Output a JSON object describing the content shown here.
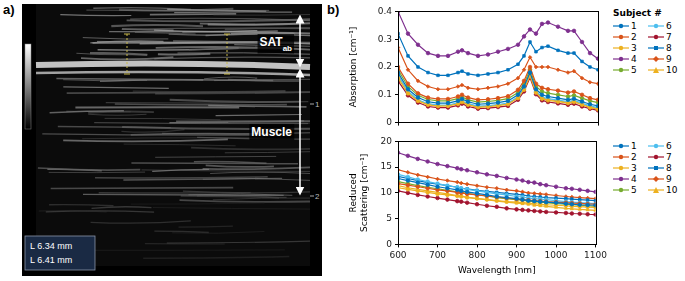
{
  "panel_labels": [
    "a)",
    "b)"
  ],
  "ultrasound_image": {
    "labels": [
      {
        "text": "SAT",
        "subscript": "ab"
      },
      {
        "text": "Muscle"
      }
    ],
    "measurements": [
      "L 6.34 mm",
      "L 6.41 mm"
    ],
    "depth_ticks": [
      1,
      2
    ]
  },
  "chart_data": [
    {
      "type": "line",
      "y_label": "Absorption [cm⁻¹]",
      "legend_title": "Subject #",
      "legend": "right",
      "grid": false,
      "tick_labels": "y",
      "x": [
        600,
        625,
        650,
        675,
        700,
        725,
        750,
        760,
        775,
        800,
        825,
        850,
        875,
        900,
        915,
        930,
        945,
        960,
        975,
        1000,
        1025,
        1040,
        1060,
        1080,
        1100
      ],
      "xlim": [
        600,
        1100
      ],
      "xticks": [
        600,
        700,
        800,
        900,
        1000,
        1100
      ],
      "ylim": [
        0,
        0.4
      ],
      "yticks": [
        0,
        0.1,
        0.2,
        0.3,
        0.4
      ],
      "series": [
        {
          "name": "1",
          "color": "#0072BD",
          "marker": "circle",
          "values": [
            0.18,
            0.12,
            0.09,
            0.075,
            0.07,
            0.07,
            0.078,
            0.085,
            0.075,
            0.066,
            0.068,
            0.072,
            0.078,
            0.1,
            0.13,
            0.18,
            0.12,
            0.1,
            0.094,
            0.088,
            0.082,
            0.086,
            0.076,
            0.066,
            0.06
          ]
        },
        {
          "name": "2",
          "color": "#D95319",
          "marker": "circle",
          "values": [
            0.2,
            0.14,
            0.105,
            0.09,
            0.085,
            0.085,
            0.094,
            0.1,
            0.09,
            0.082,
            0.084,
            0.088,
            0.095,
            0.118,
            0.15,
            0.2,
            0.14,
            0.125,
            0.12,
            0.115,
            0.108,
            0.112,
            0.1,
            0.088,
            0.082
          ]
        },
        {
          "name": "3",
          "color": "#EDB120",
          "marker": "circle",
          "values": [
            0.16,
            0.105,
            0.078,
            0.064,
            0.059,
            0.06,
            0.067,
            0.074,
            0.064,
            0.055,
            0.057,
            0.061,
            0.066,
            0.088,
            0.118,
            0.168,
            0.108,
            0.086,
            0.08,
            0.075,
            0.07,
            0.074,
            0.064,
            0.054,
            0.048
          ]
        },
        {
          "name": "4",
          "color": "#7E2F8E",
          "marker": "circle",
          "values": [
            0.4,
            0.32,
            0.28,
            0.25,
            0.24,
            0.24,
            0.255,
            0.26,
            0.25,
            0.24,
            0.245,
            0.255,
            0.265,
            0.28,
            0.31,
            0.335,
            0.32,
            0.355,
            0.36,
            0.345,
            0.33,
            0.33,
            0.29,
            0.25,
            0.23
          ]
        },
        {
          "name": "5",
          "color": "#77AC30",
          "marker": "circle",
          "values": [
            0.19,
            0.13,
            0.098,
            0.083,
            0.078,
            0.078,
            0.086,
            0.092,
            0.082,
            0.074,
            0.076,
            0.08,
            0.086,
            0.108,
            0.14,
            0.19,
            0.13,
            0.112,
            0.106,
            0.1,
            0.094,
            0.098,
            0.088,
            0.078,
            0.072
          ]
        },
        {
          "name": "6",
          "color": "#4DBEEE",
          "marker": "circle",
          "values": [
            0.17,
            0.112,
            0.082,
            0.068,
            0.063,
            0.063,
            0.071,
            0.078,
            0.068,
            0.059,
            0.061,
            0.065,
            0.07,
            0.093,
            0.123,
            0.172,
            0.113,
            0.092,
            0.086,
            0.081,
            0.076,
            0.08,
            0.07,
            0.06,
            0.054
          ]
        },
        {
          "name": "7",
          "color": "#A2142F",
          "marker": "circle",
          "values": [
            0.15,
            0.098,
            0.072,
            0.058,
            0.054,
            0.054,
            0.062,
            0.068,
            0.058,
            0.05,
            0.052,
            0.056,
            0.06,
            0.082,
            0.112,
            0.162,
            0.102,
            0.08,
            0.074,
            0.069,
            0.064,
            0.068,
            0.058,
            0.05,
            0.044
          ]
        },
        {
          "name": "8",
          "color": "#0072BD",
          "marker": "square",
          "values": [
            0.32,
            0.24,
            0.2,
            0.18,
            0.17,
            0.17,
            0.18,
            0.185,
            0.175,
            0.17,
            0.175,
            0.18,
            0.19,
            0.21,
            0.24,
            0.29,
            0.255,
            0.27,
            0.275,
            0.26,
            0.25,
            0.25,
            0.22,
            0.2,
            0.19
          ]
        },
        {
          "name": "9",
          "color": "#D95319",
          "marker": "diamond",
          "values": [
            0.27,
            0.19,
            0.15,
            0.13,
            0.12,
            0.12,
            0.13,
            0.135,
            0.125,
            0.12,
            0.125,
            0.13,
            0.14,
            0.16,
            0.19,
            0.235,
            0.2,
            0.2,
            0.2,
            0.19,
            0.18,
            0.185,
            0.16,
            0.145,
            0.14
          ]
        },
        {
          "name": "10",
          "color": "#EDB120",
          "marker": "triangle",
          "values": [
            0.17,
            0.11,
            0.08,
            0.066,
            0.061,
            0.061,
            0.069,
            0.076,
            0.066,
            0.057,
            0.059,
            0.063,
            0.068,
            0.091,
            0.121,
            0.17,
            0.111,
            0.089,
            0.083,
            0.078,
            0.073,
            0.077,
            0.067,
            0.057,
            0.051
          ]
        }
      ]
    },
    {
      "type": "line",
      "x_label": "Wavelength [nm]",
      "y_label": "Reduced Scattering [cm⁻¹]",
      "legend": "right",
      "grid": false,
      "x": [
        600,
        625,
        650,
        675,
        700,
        725,
        750,
        760,
        775,
        800,
        825,
        850,
        875,
        900,
        915,
        930,
        945,
        960,
        975,
        1000,
        1025,
        1040,
        1060,
        1080,
        1100
      ],
      "xlim": [
        600,
        1100
      ],
      "xticks": [
        600,
        700,
        800,
        900,
        1000,
        1100
      ],
      "ylim": [
        0,
        20
      ],
      "yticks": [
        0,
        5,
        10,
        15,
        20
      ],
      "series": [
        {
          "name": "1",
          "color": "#0072BD",
          "marker": "circle",
          "values": [
            12.8,
            12.4,
            12.0,
            11.6,
            11.2,
            10.9,
            10.6,
            10.4,
            10.2,
            9.9,
            9.6,
            9.3,
            9.1,
            8.9,
            8.7,
            8.5,
            8.4,
            8.3,
            8.2,
            8.1,
            7.9,
            7.8,
            7.7,
            7.65,
            7.6
          ]
        },
        {
          "name": "2",
          "color": "#D95319",
          "marker": "circle",
          "values": [
            11.8,
            11.5,
            11.2,
            10.9,
            10.6,
            10.4,
            10.1,
            10.0,
            9.8,
            9.6,
            9.4,
            9.2,
            9.0,
            8.8,
            8.7,
            8.6,
            8.5,
            8.4,
            8.3,
            8.2,
            8.1,
            8.0,
            7.95,
            7.85,
            7.8
          ]
        },
        {
          "name": "3",
          "color": "#EDB120",
          "marker": "circle",
          "values": [
            11.0,
            10.7,
            10.4,
            10.1,
            9.8,
            9.6,
            9.4,
            9.3,
            9.1,
            8.9,
            8.7,
            8.5,
            8.3,
            8.2,
            8.1,
            8.0,
            7.9,
            7.8,
            7.7,
            7.6,
            7.5,
            7.4,
            7.35,
            7.25,
            7.2
          ]
        },
        {
          "name": "4",
          "color": "#7E2F8E",
          "marker": "circle",
          "values": [
            17.8,
            17.2,
            16.6,
            16.1,
            15.6,
            15.2,
            14.8,
            14.6,
            14.4,
            14.0,
            13.6,
            13.3,
            12.9,
            12.6,
            12.4,
            12.1,
            12.0,
            11.7,
            11.5,
            11.2,
            10.9,
            10.8,
            10.6,
            10.4,
            10.2
          ]
        },
        {
          "name": "5",
          "color": "#77AC30",
          "marker": "circle",
          "values": [
            12.2,
            11.8,
            11.4,
            11.1,
            10.8,
            10.5,
            10.2,
            10.1,
            9.9,
            9.6,
            9.4,
            9.1,
            8.9,
            8.7,
            8.6,
            8.4,
            8.3,
            8.2,
            8.1,
            7.9,
            7.8,
            7.7,
            7.6,
            7.5,
            7.4
          ]
        },
        {
          "name": "6",
          "color": "#4DBEEE",
          "marker": "circle",
          "values": [
            13.6,
            13.1,
            12.6,
            12.2,
            11.8,
            11.4,
            11.1,
            10.9,
            10.7,
            10.4,
            10.1,
            9.8,
            9.6,
            9.3,
            9.2,
            9.0,
            8.9,
            8.8,
            8.7,
            8.5,
            8.3,
            8.2,
            8.1,
            8.0,
            7.9
          ]
        },
        {
          "name": "7",
          "color": "#A2142F",
          "marker": "circle",
          "values": [
            10.4,
            10.0,
            9.6,
            9.3,
            9.0,
            8.7,
            8.4,
            8.3,
            8.1,
            7.8,
            7.5,
            7.3,
            7.0,
            6.8,
            6.7,
            6.6,
            6.5,
            6.4,
            6.3,
            6.2,
            6.1,
            6.0,
            5.95,
            5.85,
            5.8
          ]
        },
        {
          "name": "8",
          "color": "#0072BD",
          "marker": "square",
          "values": [
            13.2,
            12.8,
            12.4,
            12.0,
            11.7,
            11.4,
            11.1,
            10.9,
            10.8,
            10.5,
            10.3,
            10.1,
            9.9,
            9.7,
            9.6,
            9.4,
            9.3,
            9.2,
            9.1,
            9.0,
            8.9,
            8.8,
            8.7,
            8.6,
            8.5
          ]
        },
        {
          "name": "9",
          "color": "#D95319",
          "marker": "diamond",
          "values": [
            14.5,
            14.0,
            13.5,
            13.1,
            12.7,
            12.4,
            12.1,
            11.9,
            11.7,
            11.4,
            11.1,
            10.9,
            10.6,
            10.4,
            10.2,
            10.0,
            9.9,
            9.8,
            9.7,
            9.5,
            9.3,
            9.2,
            9.1,
            9.0,
            8.9
          ]
        },
        {
          "name": "10",
          "color": "#EDB120",
          "marker": "triangle",
          "values": [
            11.4,
            11.0,
            10.7,
            10.4,
            10.1,
            9.8,
            9.5,
            9.4,
            9.2,
            8.9,
            8.7,
            8.4,
            8.2,
            8.0,
            7.9,
            7.8,
            7.6,
            7.5,
            7.4,
            7.2,
            7.0,
            6.9,
            6.8,
            6.7,
            6.6
          ]
        }
      ]
    }
  ]
}
